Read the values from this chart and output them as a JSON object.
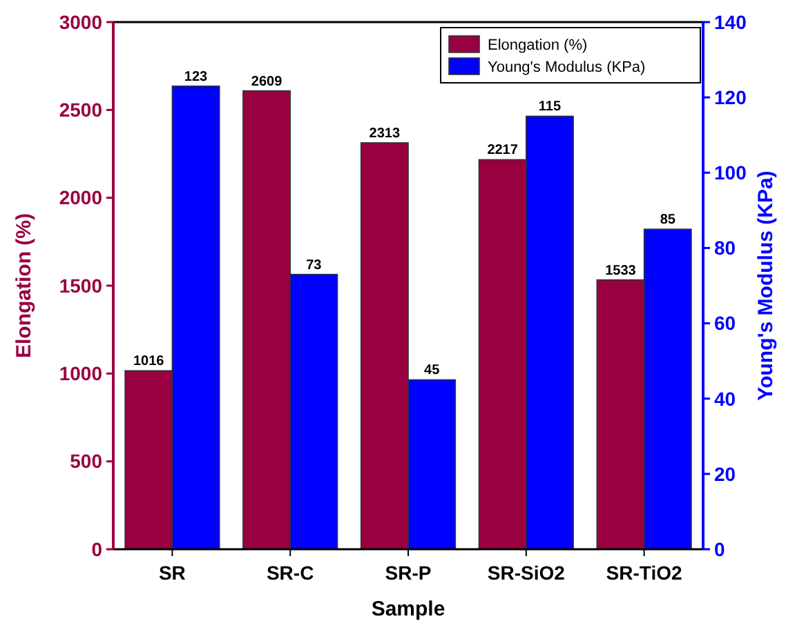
{
  "chart_data": {
    "type": "bar",
    "xlabel": "Sample",
    "ylabel": "Elongation (%)",
    "y2label": "Young's Modulus (KPa)",
    "categories": [
      "SR",
      "SR-C",
      "SR-P",
      "SR-SiO2",
      "SR-TiO2"
    ],
    "series": [
      {
        "name": "Elongation (%)",
        "color": "#990040",
        "values": [
          1016,
          2609,
          2313,
          2217,
          1533
        ]
      },
      {
        "name": "Young's Modulus (KPa)",
        "color": "#0000ff",
        "values": [
          123,
          73,
          45,
          115,
          85
        ],
        "axis": "y2"
      }
    ],
    "ylim": [
      0,
      3000
    ],
    "yticks": [
      0,
      500,
      1000,
      1500,
      2000,
      2500,
      3000
    ],
    "y2lim": [
      0,
      140
    ],
    "y2ticks": [
      0,
      20,
      40,
      60,
      80,
      100,
      120,
      140
    ],
    "data_labels": true,
    "legend": "top right",
    "grid": false
  }
}
